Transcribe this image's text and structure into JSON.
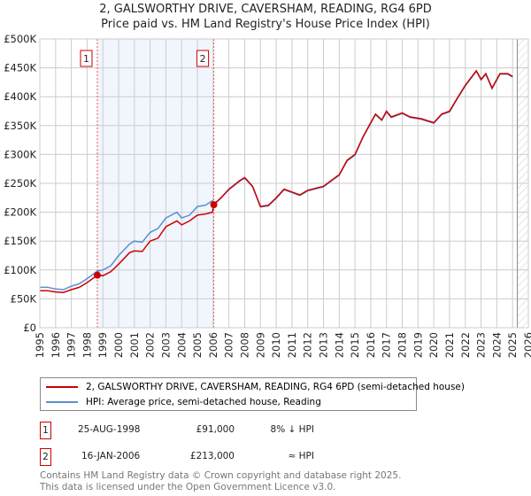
{
  "title": "2, GALSWORTHY DRIVE, CAVERSHAM, READING, RG4 6PD",
  "subtitle": "Price paid vs. HM Land Registry's House Price Index (HPI)",
  "chart_data": {
    "type": "line",
    "xlim": [
      1995,
      2026
    ],
    "ylim": [
      0,
      500000
    ],
    "x_ticks": [
      "1995",
      "1996",
      "1997",
      "1998",
      "1999",
      "2000",
      "2001",
      "2002",
      "2003",
      "2004",
      "2005",
      "2006",
      "2007",
      "2008",
      "2009",
      "2010",
      "2011",
      "2012",
      "2013",
      "2014",
      "2015",
      "2016",
      "2017",
      "2018",
      "2019",
      "2020",
      "2021",
      "2022",
      "2023",
      "2024",
      "2025",
      "2026"
    ],
    "y_ticks": [
      {
        "v": 0,
        "label": "£0"
      },
      {
        "v": 50000,
        "label": "£50K"
      },
      {
        "v": 100000,
        "label": "£100K"
      },
      {
        "v": 150000,
        "label": "£150K"
      },
      {
        "v": 200000,
        "label": "£200K"
      },
      {
        "v": 250000,
        "label": "£250K"
      },
      {
        "v": 300000,
        "label": "£300K"
      },
      {
        "v": 350000,
        "label": "£350K"
      },
      {
        "v": 400000,
        "label": "£400K"
      },
      {
        "v": 450000,
        "label": "£450K"
      },
      {
        "v": 500000,
        "label": "£500K"
      }
    ],
    "grid": true,
    "shaded_range": [
      1998.65,
      2006.04
    ],
    "forecast_from": 2025.3,
    "series": [
      {
        "name": "2, GALSWORTHY DRIVE, CAVERSHAM, READING, RG4 6PD (semi-detached house)",
        "color": "#cc0000",
        "x": [
          1995,
          1995.5,
          1996,
          1996.5,
          1997,
          1997.5,
          1998,
          1998.65,
          1999,
          1999.5,
          2000,
          2000.7,
          2001,
          2001.5,
          2002,
          2002.5,
          2003,
          2003.7,
          2004,
          2004.5,
          2005,
          2005.5,
          2005.95,
          2006.04,
          2006.5,
          2007,
          2007.7,
          2008,
          2008.5,
          2009,
          2009.5,
          2010,
          2010.5,
          2011,
          2011.5,
          2012,
          2013,
          2013.5,
          2014,
          2014.5,
          2015,
          2015.5,
          2016,
          2016.3,
          2016.7,
          2017,
          2017.3,
          2018,
          2018.5,
          2019.2,
          2020,
          2020.5,
          2021,
          2021.5,
          2022,
          2022.7,
          2023,
          2023.3,
          2023.7,
          2024.2,
          2024.7,
          2025
        ],
        "y": [
          64000,
          64000,
          62000,
          61000,
          66000,
          70000,
          78000,
          91000,
          90000,
          97000,
          110000,
          130000,
          133000,
          132000,
          150000,
          155000,
          175000,
          185000,
          178000,
          185000,
          195000,
          197000,
          200000,
          213000,
          225000,
          240000,
          255000,
          260000,
          245000,
          210000,
          212000,
          225000,
          240000,
          235000,
          230000,
          238000,
          245000,
          255000,
          265000,
          290000,
          300000,
          330000,
          355000,
          370000,
          360000,
          375000,
          365000,
          372000,
          365000,
          362000,
          355000,
          370000,
          375000,
          398000,
          420000,
          445000,
          430000,
          440000,
          415000,
          440000,
          440000,
          435000
        ]
      },
      {
        "name": "HPI: Average price, semi-detached house, Reading",
        "color": "#5b8fd0",
        "x": [
          1995,
          1995.5,
          1996,
          1996.5,
          1997,
          1997.5,
          1998,
          1998.65,
          1999,
          1999.5,
          2000,
          2000.7,
          2001,
          2001.5,
          2002,
          2002.5,
          2003,
          2003.7,
          2004,
          2004.5,
          2005,
          2005.5,
          2005.95,
          2006.04,
          2006.5,
          2007,
          2007.7,
          2008,
          2008.5,
          2009,
          2009.5,
          2010,
          2010.5,
          2011,
          2011.5,
          2012,
          2013,
          2013.5,
          2014,
          2014.5,
          2015,
          2015.5,
          2016,
          2016.3,
          2016.7,
          2017,
          2017.3,
          2018,
          2018.5,
          2019.2,
          2020,
          2020.5,
          2021,
          2021.5,
          2022,
          2022.7,
          2023,
          2023.3,
          2023.7,
          2024.2,
          2024.7,
          2025
        ],
        "y": [
          70000,
          70000,
          67000,
          66000,
          72000,
          76000,
          85000,
          98000,
          100000,
          107000,
          125000,
          145000,
          150000,
          148000,
          165000,
          172000,
          190000,
          200000,
          190000,
          195000,
          210000,
          212000,
          220000,
          214000,
          225000,
          239000,
          254000,
          259000,
          244000,
          209000,
          211000,
          224000,
          239000,
          234000,
          229000,
          237000,
          244000,
          254000,
          264000,
          289000,
          299000,
          329000,
          354000,
          369000,
          359000,
          374000,
          364000,
          371000,
          364000,
          361000,
          354000,
          369000,
          374000,
          397000,
          419000,
          444000,
          429000,
          439000,
          414000,
          439000,
          439000,
          434000
        ]
      }
    ],
    "markers": [
      {
        "id": "1",
        "x": 1998.65,
        "y": 91000
      },
      {
        "id": "2",
        "x": 2006.04,
        "y": 213000
      }
    ]
  },
  "legend": {
    "property": "2, GALSWORTHY DRIVE, CAVERSHAM, READING, RG4 6PD (semi-detached house)",
    "hpi": "HPI: Average price, semi-detached house, Reading"
  },
  "transactions": [
    {
      "num": "1",
      "date": "25-AUG-1998",
      "price": "£91,000",
      "hpi": "8% ↓ HPI"
    },
    {
      "num": "2",
      "date": "16-JAN-2006",
      "price": "£213,000",
      "hpi": "≈ HPI"
    }
  ],
  "footer": [
    "Contains HM Land Registry data © Crown copyright and database right 2025.",
    "This data is licensed under the Open Government Licence v3.0."
  ]
}
